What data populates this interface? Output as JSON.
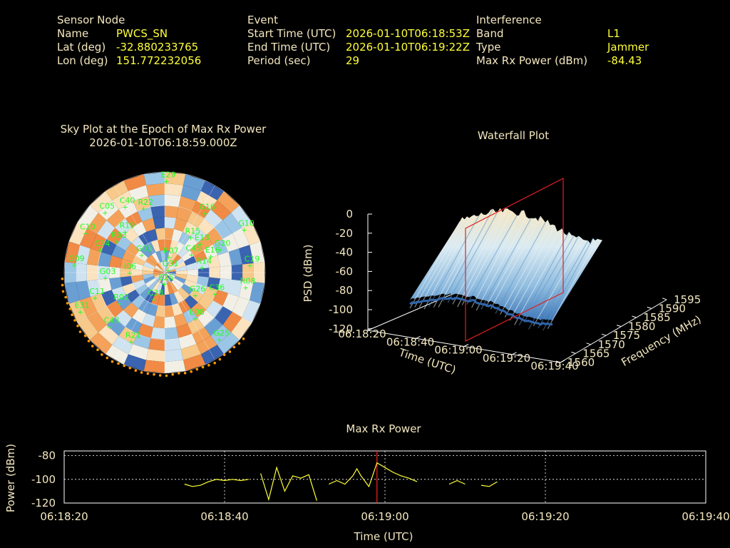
{
  "header": {
    "sensor": {
      "heading": "Sensor Node",
      "rows": [
        {
          "label": "Name",
          "value": "PWCS_SN"
        },
        {
          "label": "Lat (deg)",
          "value": "-32.880233765"
        },
        {
          "label": "Lon (deg)",
          "value": "151.772232056"
        }
      ]
    },
    "event": {
      "heading": "Event",
      "rows": [
        {
          "label": "Start Time (UTC)",
          "value": "2026-01-10T06:18:53Z"
        },
        {
          "label": "End Time (UTC)",
          "value": "2026-01-10T06:19:22Z"
        },
        {
          "label": "Period (sec)",
          "value": "29"
        }
      ]
    },
    "interference": {
      "heading": "Interference",
      "rows": [
        {
          "label": "Band",
          "value": "L1"
        },
        {
          "label": "Type",
          "value": "Jammer"
        },
        {
          "label": "Max Rx Power (dBm)",
          "value": "-84.43"
        }
      ]
    }
  },
  "colors": {
    "label": "#f3e7bf",
    "value": "#ffff3a",
    "sat": "#22ff22",
    "marker": "#ff2020",
    "jam": "#ff9900"
  },
  "chart_data": [
    {
      "type": "scatter",
      "title": "Sky Plot at the Epoch of Max Rx Power",
      "subtitle": "2026-01-10T06:18:59.000Z",
      "satellites": [
        {
          "id": "E29",
          "az": 2,
          "el": 8
        },
        {
          "id": "C40",
          "az": 330,
          "el": 22
        },
        {
          "id": "R22",
          "az": 343,
          "el": 30
        },
        {
          "id": "C05",
          "az": 316,
          "el": 15
        },
        {
          "id": "G16",
          "az": 35,
          "el": 25
        },
        {
          "id": "G10",
          "az": 62,
          "el": 8
        },
        {
          "id": "C10",
          "az": 297,
          "el": 12
        },
        {
          "id": "R19",
          "az": 317,
          "el": 40
        },
        {
          "id": "R15",
          "az": 38,
          "el": 50
        },
        {
          "id": "E13",
          "az": 52,
          "el": 48
        },
        {
          "id": "R03",
          "az": 304,
          "el": 40
        },
        {
          "id": "G20",
          "az": 68,
          "el": 35
        },
        {
          "id": "C45",
          "az": 57,
          "el": 60
        },
        {
          "id": "E16",
          "az": 71,
          "el": 45
        },
        {
          "id": "C19",
          "az": 85,
          "el": 12
        },
        {
          "id": "R07",
          "az": 20,
          "el": 75
        },
        {
          "id": "G01",
          "az": 310,
          "el": 65
        },
        {
          "id": "G03",
          "az": 265,
          "el": 38
        },
        {
          "id": "R14",
          "az": 82,
          "el": 55
        },
        {
          "id": "G31",
          "az": 60,
          "el": 85
        },
        {
          "id": "I06",
          "az": 270,
          "el": 60
        },
        {
          "id": "E26",
          "az": 175,
          "el": 80
        },
        {
          "id": "G09",
          "az": 275,
          "el": 10
        },
        {
          "id": "C34",
          "az": 290,
          "el": 30
        },
        {
          "id": "R08",
          "az": 100,
          "el": 15
        },
        {
          "id": "C36",
          "az": 112,
          "el": 40
        },
        {
          "id": "E31",
          "az": 245,
          "el": 8
        },
        {
          "id": "C11",
          "az": 250,
          "el": 25
        },
        {
          "id": "R02",
          "az": 235,
          "el": 42
        },
        {
          "id": "C38",
          "az": 200,
          "el": 65
        },
        {
          "id": "G26",
          "az": 125,
          "el": 55
        },
        {
          "id": "E08",
          "az": 145,
          "el": 40
        },
        {
          "id": "C43",
          "az": 225,
          "el": 22
        },
        {
          "id": "G25",
          "az": 140,
          "el": 12
        },
        {
          "id": "R21",
          "az": 205,
          "el": 22
        }
      ]
    },
    {
      "type": "heatmap",
      "title": "Waterfall Plot",
      "xlabel": "Time (UTC)",
      "ylabel": "Frequency (MHz)",
      "zlabel": "PSD (dBm)",
      "x_ticks": [
        "06:18:20",
        "06:18:40",
        "06:19:00",
        "06:19:20",
        "06:19:40"
      ],
      "y_ticks": [
        "1560",
        "1565",
        "1570",
        "1575",
        "1580",
        "1585",
        "1590",
        "1595"
      ],
      "z_ticks": [
        "0",
        "-20",
        "-40",
        "-60",
        "-80",
        "-100",
        "-120"
      ],
      "zlim": [
        -120,
        0
      ],
      "marker_time": "06:18:59"
    },
    {
      "type": "line",
      "title": "Max Rx Power",
      "xlabel": "Time (UTC)",
      "ylabel": "Power (dBm)",
      "x_ticks": [
        "06:18:20",
        "06:18:40",
        "06:19:00",
        "06:19:20",
        "06:19:40"
      ],
      "y_ticks": [
        "-80",
        "-100",
        "-120"
      ],
      "xlim_sec": [
        0,
        80
      ],
      "ylim": [
        -120,
        -76
      ],
      "marker_sec": 39,
      "series": [
        {
          "points": [
            [
              15,
              -104
            ],
            [
              16,
              -106
            ],
            [
              17,
              -105
            ],
            [
              18,
              -102
            ],
            [
              19,
              -100
            ],
            [
              20,
              -101
            ],
            [
              21,
              -100
            ],
            [
              22,
              -101
            ],
            [
              23,
              -100
            ]
          ]
        },
        {
          "points": [
            [
              24.5,
              -95
            ],
            [
              25.5,
              -117
            ],
            [
              26.5,
              -90
            ],
            [
              27.5,
              -110
            ],
            [
              28.5,
              -97
            ],
            [
              29.5,
              -99
            ],
            [
              30.5,
              -96
            ],
            [
              31.5,
              -118
            ]
          ]
        },
        {
          "points": [
            [
              33,
              -104
            ],
            [
              34,
              -101
            ],
            [
              35,
              -104
            ],
            [
              36,
              -97
            ],
            [
              36.5,
              -91
            ],
            [
              37,
              -97
            ],
            [
              38,
              -106
            ],
            [
              39,
              -86
            ],
            [
              40,
              -90
            ],
            [
              41,
              -94
            ],
            [
              42,
              -97
            ],
            [
              43,
              -99
            ],
            [
              44,
              -102
            ]
          ]
        },
        {
          "points": [
            [
              48,
              -104
            ],
            [
              49,
              -101
            ],
            [
              50,
              -104
            ]
          ]
        },
        {
          "points": [
            [
              52,
              -105
            ],
            [
              53,
              -106
            ],
            [
              54,
              -102
            ]
          ]
        }
      ]
    }
  ]
}
